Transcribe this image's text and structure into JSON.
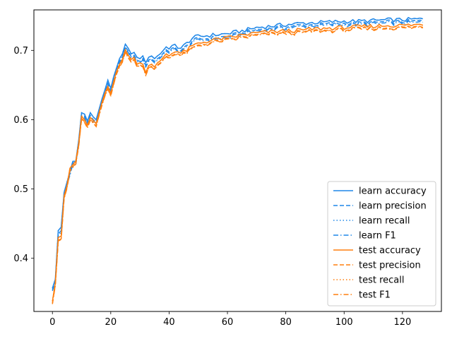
{
  "chart_data": {
    "type": "line",
    "title": "",
    "xlabel": "",
    "ylabel": "",
    "xlim": [
      -6.35,
      133.35
    ],
    "ylim": [
      0.3233,
      0.7584
    ],
    "xticks": [
      0,
      20,
      40,
      60,
      80,
      100,
      120
    ],
    "yticks": [
      0.4,
      0.5,
      0.6,
      0.7
    ],
    "grid": false,
    "legend_position": "lower-right",
    "colors": {
      "learn": "#1f87e8",
      "test": "#ff7f0e"
    },
    "x_start": 0,
    "x_end": 127,
    "anchors_x": [
      0,
      1,
      2,
      3,
      4,
      5,
      6,
      7,
      8,
      9,
      10,
      11,
      12,
      13,
      14,
      15,
      16,
      17,
      18,
      19,
      20,
      21,
      22,
      23,
      24,
      25,
      26,
      27,
      28,
      29,
      30,
      31,
      32,
      33,
      34,
      35,
      36,
      37,
      38,
      39,
      40,
      42,
      44,
      46,
      48,
      50,
      55,
      60,
      65,
      70,
      75,
      80,
      85,
      90,
      95,
      100,
      105,
      110,
      115,
      120,
      125,
      127
    ],
    "series": [
      {
        "name": "learn accuracy",
        "style": "solid",
        "color": "learn",
        "values": [
          0.357,
          0.37,
          0.44,
          0.445,
          0.495,
          0.51,
          0.525,
          0.54,
          0.54,
          0.57,
          0.61,
          0.608,
          0.598,
          0.61,
          0.604,
          0.6,
          0.615,
          0.63,
          0.643,
          0.657,
          0.645,
          0.662,
          0.675,
          0.688,
          0.695,
          0.709,
          0.703,
          0.695,
          0.697,
          0.69,
          0.688,
          0.692,
          0.682,
          0.69,
          0.692,
          0.688,
          0.692,
          0.695,
          0.7,
          0.705,
          0.702,
          0.708,
          0.703,
          0.71,
          0.718,
          0.72,
          0.722,
          0.724,
          0.728,
          0.733,
          0.735,
          0.737,
          0.739,
          0.74,
          0.741,
          0.742,
          0.742,
          0.743,
          0.744,
          0.744,
          0.745,
          0.745
        ]
      },
      {
        "name": "learn precision",
        "style": "dashed",
        "color": "learn",
        "values": [
          0.355,
          0.368,
          0.435,
          0.44,
          0.492,
          0.508,
          0.522,
          0.538,
          0.537,
          0.567,
          0.607,
          0.605,
          0.595,
          0.606,
          0.6,
          0.597,
          0.612,
          0.627,
          0.64,
          0.652,
          0.641,
          0.658,
          0.671,
          0.684,
          0.691,
          0.705,
          0.699,
          0.691,
          0.693,
          0.686,
          0.684,
          0.688,
          0.678,
          0.686,
          0.688,
          0.684,
          0.688,
          0.691,
          0.696,
          0.701,
          0.698,
          0.704,
          0.699,
          0.706,
          0.714,
          0.716,
          0.718,
          0.72,
          0.725,
          0.73,
          0.732,
          0.734,
          0.736,
          0.737,
          0.738,
          0.739,
          0.739,
          0.74,
          0.741,
          0.741,
          0.742,
          0.742
        ]
      },
      {
        "name": "learn recall",
        "style": "dotted",
        "color": "learn",
        "values": [
          0.357,
          0.37,
          0.44,
          0.445,
          0.495,
          0.51,
          0.525,
          0.54,
          0.54,
          0.57,
          0.61,
          0.608,
          0.598,
          0.61,
          0.604,
          0.6,
          0.615,
          0.63,
          0.643,
          0.657,
          0.645,
          0.662,
          0.675,
          0.688,
          0.695,
          0.709,
          0.703,
          0.695,
          0.697,
          0.69,
          0.688,
          0.692,
          0.682,
          0.69,
          0.692,
          0.688,
          0.692,
          0.695,
          0.7,
          0.705,
          0.702,
          0.708,
          0.703,
          0.71,
          0.718,
          0.72,
          0.722,
          0.724,
          0.728,
          0.733,
          0.735,
          0.737,
          0.739,
          0.74,
          0.741,
          0.742,
          0.742,
          0.743,
          0.744,
          0.744,
          0.745,
          0.745
        ]
      },
      {
        "name": "learn F1",
        "style": "dashdot",
        "color": "learn",
        "values": [
          0.353,
          0.366,
          0.433,
          0.438,
          0.49,
          0.506,
          0.52,
          0.536,
          0.535,
          0.565,
          0.605,
          0.603,
          0.593,
          0.604,
          0.598,
          0.595,
          0.61,
          0.625,
          0.638,
          0.65,
          0.639,
          0.656,
          0.669,
          0.682,
          0.689,
          0.703,
          0.697,
          0.689,
          0.691,
          0.684,
          0.682,
          0.686,
          0.676,
          0.684,
          0.686,
          0.682,
          0.686,
          0.689,
          0.694,
          0.699,
          0.696,
          0.702,
          0.697,
          0.704,
          0.712,
          0.714,
          0.716,
          0.718,
          0.723,
          0.728,
          0.73,
          0.732,
          0.734,
          0.735,
          0.736,
          0.737,
          0.737,
          0.738,
          0.739,
          0.739,
          0.74,
          0.74
        ]
      },
      {
        "name": "test accuracy",
        "style": "solid",
        "color": "test",
        "values": [
          0.338,
          0.365,
          0.43,
          0.432,
          0.49,
          0.505,
          0.53,
          0.535,
          0.54,
          0.565,
          0.605,
          0.6,
          0.592,
          0.603,
          0.599,
          0.594,
          0.61,
          0.625,
          0.638,
          0.648,
          0.638,
          0.655,
          0.67,
          0.68,
          0.687,
          0.701,
          0.693,
          0.687,
          0.69,
          0.68,
          0.682,
          0.68,
          0.668,
          0.678,
          0.68,
          0.676,
          0.682,
          0.685,
          0.69,
          0.695,
          0.692,
          0.7,
          0.696,
          0.7,
          0.706,
          0.71,
          0.715,
          0.718,
          0.722,
          0.725,
          0.727,
          0.728,
          0.729,
          0.731,
          0.732,
          0.733,
          0.734,
          0.735,
          0.736,
          0.736,
          0.737,
          0.737
        ]
      },
      {
        "name": "test precision",
        "style": "dashed",
        "color": "test",
        "values": [
          0.335,
          0.362,
          0.426,
          0.428,
          0.487,
          0.502,
          0.527,
          0.532,
          0.537,
          0.562,
          0.602,
          0.597,
          0.589,
          0.6,
          0.596,
          0.591,
          0.607,
          0.622,
          0.635,
          0.645,
          0.635,
          0.652,
          0.667,
          0.677,
          0.684,
          0.698,
          0.69,
          0.684,
          0.687,
          0.677,
          0.679,
          0.677,
          0.665,
          0.675,
          0.677,
          0.673,
          0.679,
          0.682,
          0.687,
          0.692,
          0.689,
          0.697,
          0.693,
          0.697,
          0.703,
          0.707,
          0.712,
          0.715,
          0.719,
          0.722,
          0.724,
          0.725,
          0.726,
          0.728,
          0.729,
          0.73,
          0.731,
          0.732,
          0.733,
          0.733,
          0.734,
          0.734
        ]
      },
      {
        "name": "test recall",
        "style": "dotted",
        "color": "test",
        "values": [
          0.338,
          0.365,
          0.43,
          0.432,
          0.49,
          0.505,
          0.53,
          0.535,
          0.54,
          0.565,
          0.605,
          0.6,
          0.592,
          0.603,
          0.599,
          0.594,
          0.61,
          0.625,
          0.638,
          0.648,
          0.638,
          0.655,
          0.67,
          0.68,
          0.687,
          0.701,
          0.693,
          0.687,
          0.69,
          0.68,
          0.682,
          0.68,
          0.668,
          0.678,
          0.68,
          0.676,
          0.682,
          0.685,
          0.69,
          0.695,
          0.692,
          0.7,
          0.696,
          0.7,
          0.706,
          0.71,
          0.715,
          0.718,
          0.722,
          0.725,
          0.727,
          0.728,
          0.729,
          0.731,
          0.732,
          0.733,
          0.734,
          0.735,
          0.736,
          0.736,
          0.737,
          0.737
        ]
      },
      {
        "name": "test F1",
        "style": "dashdot",
        "color": "test",
        "values": [
          0.334,
          0.361,
          0.425,
          0.427,
          0.486,
          0.501,
          0.526,
          0.531,
          0.536,
          0.561,
          0.601,
          0.596,
          0.588,
          0.599,
          0.595,
          0.59,
          0.606,
          0.621,
          0.634,
          0.644,
          0.634,
          0.651,
          0.666,
          0.676,
          0.683,
          0.697,
          0.689,
          0.683,
          0.686,
          0.676,
          0.678,
          0.676,
          0.664,
          0.674,
          0.676,
          0.672,
          0.678,
          0.681,
          0.686,
          0.691,
          0.688,
          0.696,
          0.692,
          0.696,
          0.702,
          0.706,
          0.711,
          0.714,
          0.718,
          0.721,
          0.723,
          0.724,
          0.725,
          0.727,
          0.728,
          0.729,
          0.73,
          0.731,
          0.732,
          0.732,
          0.733,
          0.733
        ]
      }
    ]
  }
}
